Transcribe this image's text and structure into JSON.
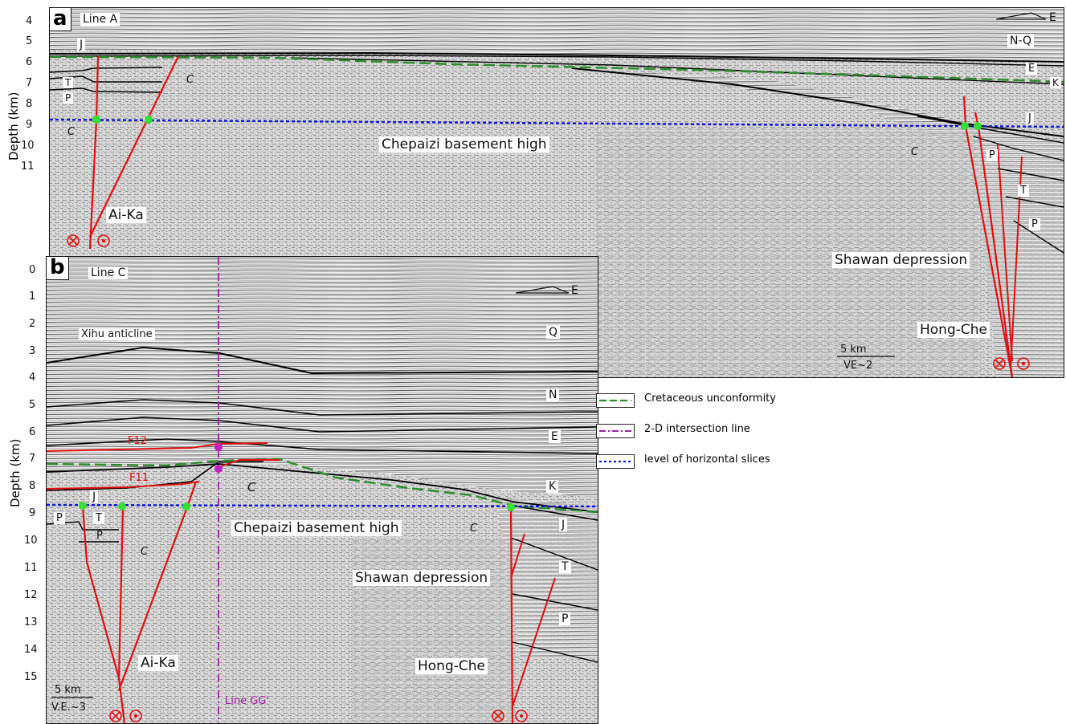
{
  "panel_a": {
    "tag": "a",
    "line_name": "Line A",
    "direction": "E",
    "depth_ticks": [
      "4",
      "5",
      "6",
      "7",
      "8",
      "9",
      "10",
      "11"
    ],
    "axis_title": "Depth (km)",
    "strata_left": [
      "J",
      "T",
      "P",
      "C"
    ],
    "strata_right": [
      "N-Q",
      "E",
      "K",
      "J",
      "P",
      "T",
      "P"
    ],
    "strata_c_mid": "C",
    "strata_c_top": "C",
    "title_high": "Chepaizi basement high",
    "fault_left": "Ai-Ka",
    "fault_right": "Hong-Che",
    "depression": "Shawan depression",
    "scale_label": "5 km",
    "ve_label": "VE~2"
  },
  "panel_b": {
    "tag": "b",
    "line_name": "Line C",
    "direction": "E",
    "depth_ticks": [
      "0",
      "1",
      "2",
      "3",
      "4",
      "5",
      "6",
      "7",
      "8",
      "9",
      "10",
      "11",
      "12",
      "13",
      "14",
      "15"
    ],
    "axis_title": "Depth (km)",
    "anticline": "Xihu anticline",
    "strata_right": [
      "Q",
      "N",
      "E",
      "K",
      "J",
      "T",
      "P"
    ],
    "strata_left": [
      "J",
      "P",
      "T",
      "P",
      "C"
    ],
    "strata_c_high": "C",
    "strata_c_right": "C",
    "fault_f12": "F12",
    "fault_f11": "F11",
    "title_high": "Chepaizi basement high",
    "depression": "Shawan depression",
    "fault_left": "Ai-Ka",
    "fault_right": "Hong-Che",
    "intersection_label": "Line GG'",
    "scale_label": "5 km",
    "ve_label": "V.E.~3"
  },
  "legend": {
    "items": [
      {
        "label": "Cretaceous unconformity",
        "color": "#2e8b2e",
        "style": "dashed"
      },
      {
        "label": "2-D intersection line",
        "color": "#a020a0",
        "style": "dashdot"
      },
      {
        "label": "level of horizontal slices",
        "color": "#1515d8",
        "style": "dotted"
      }
    ]
  },
  "colors": {
    "fault": "#e01010",
    "unconformity": "#2e8b2e",
    "slice_level": "#1515d8",
    "intersection": "#a020a0",
    "marker": "#33e033",
    "magenta_marker": "#c020c0"
  }
}
